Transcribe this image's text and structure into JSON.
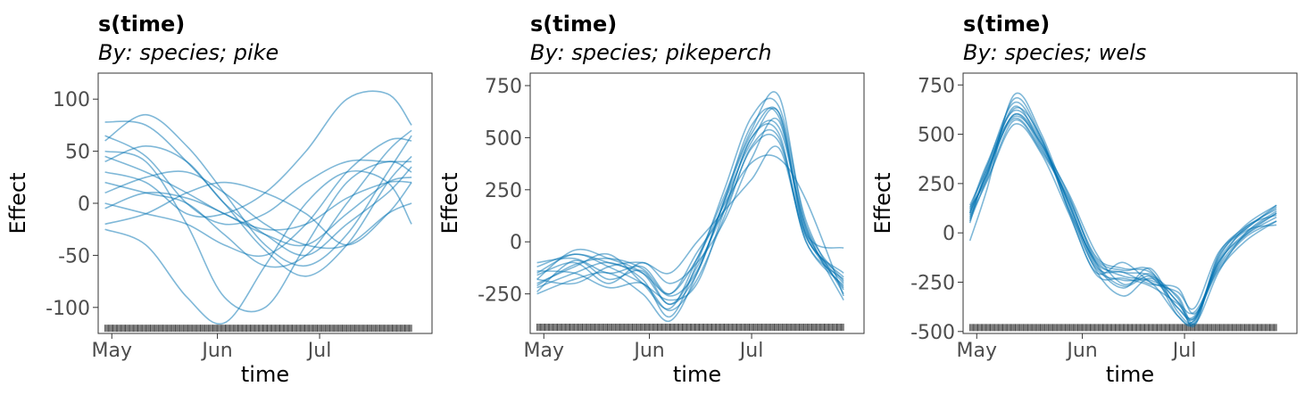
{
  "colors": {
    "curve": "#0072B2",
    "rug": "#4d4d4d",
    "axis_text": "#4d4d4d"
  },
  "chart_data": [
    {
      "type": "line",
      "title": "s(time)",
      "subtitle": "By: species; pike",
      "xlabel": "time",
      "ylabel": "Effect",
      "x_ticks": [
        {
          "label": "May",
          "day": 1
        },
        {
          "label": "Jun",
          "day": 32
        },
        {
          "label": "Jul",
          "day": 62
        }
      ],
      "xlim": [
        -3,
        95
      ],
      "ylim": [
        -125,
        125
      ],
      "y_ticks": [
        {
          "value": 100,
          "label": "100"
        },
        {
          "value": 50,
          "label": "50"
        },
        {
          "value": 0,
          "label": "0"
        },
        {
          "value": -50,
          "label": "-50"
        },
        {
          "value": -100,
          "label": "-100"
        }
      ],
      "rug": {
        "from": -1,
        "to": 89,
        "step": 1,
        "y": -120
      },
      "x": [
        -1,
        11,
        23,
        34,
        46,
        58,
        70,
        82,
        89
      ],
      "series": [
        {
          "values": [
            78,
            75,
            40,
            0,
            -45,
            -70,
            -40,
            20,
            45
          ]
        },
        {
          "values": [
            60,
            85,
            55,
            10,
            -40,
            -60,
            -30,
            30,
            65
          ]
        },
        {
          "values": [
            40,
            55,
            40,
            0,
            -30,
            -50,
            -20,
            10,
            35
          ]
        },
        {
          "values": [
            20,
            10,
            0,
            -30,
            -60,
            -50,
            0,
            50,
            70
          ]
        },
        {
          "values": [
            0,
            -10,
            -20,
            -40,
            -50,
            -20,
            30,
            60,
            60
          ]
        },
        {
          "values": [
            -5,
            10,
            5,
            -10,
            -30,
            -40,
            -10,
            20,
            25
          ]
        },
        {
          "values": [
            -20,
            -10,
            10,
            20,
            10,
            -10,
            -40,
            -10,
            20
          ]
        },
        {
          "values": [
            50,
            40,
            -20,
            -90,
            -100,
            -40,
            20,
            40,
            30
          ]
        },
        {
          "values": [
            -25,
            -40,
            -90,
            -115,
            -60,
            0,
            30,
            20,
            -20
          ]
        },
        {
          "values": [
            65,
            45,
            0,
            -20,
            -10,
            20,
            40,
            40,
            40
          ]
        },
        {
          "values": [
            30,
            20,
            -10,
            -10,
            10,
            50,
            100,
            105,
            75
          ]
        },
        {
          "values": [
            10,
            25,
            30,
            10,
            -20,
            -40,
            -40,
            -10,
            0
          ]
        },
        {
          "values": [
            45,
            30,
            10,
            -10,
            -25,
            -20,
            5,
            20,
            20
          ]
        }
      ]
    },
    {
      "type": "line",
      "title": "s(time)",
      "subtitle": "By: species; pikeperch",
      "xlabel": "time",
      "ylabel": "Effect",
      "x_ticks": [
        {
          "label": "May",
          "day": 1
        },
        {
          "label": "Jun",
          "day": 32
        },
        {
          "label": "Jul",
          "day": 62
        }
      ],
      "xlim": [
        -3,
        95
      ],
      "ylim": [
        -440,
        810
      ],
      "y_ticks": [
        {
          "value": 750,
          "label": "750"
        },
        {
          "value": 500,
          "label": "500"
        },
        {
          "value": 250,
          "label": "250"
        },
        {
          "value": 0,
          "label": "0"
        },
        {
          "value": -250,
          "label": "-250"
        }
      ],
      "rug": {
        "from": -1,
        "to": 89,
        "step": 1,
        "y": -410
      },
      "x": [
        -1,
        10,
        20,
        30,
        38,
        46,
        54,
        62,
        70,
        78,
        89
      ],
      "series": [
        {
          "values": [
            -150,
            -60,
            -120,
            -200,
            -280,
            -200,
            150,
            500,
            520,
            0,
            -180
          ]
        },
        {
          "values": [
            -180,
            -40,
            -80,
            -150,
            -300,
            -150,
            200,
            560,
            600,
            50,
            -200
          ]
        },
        {
          "values": [
            -220,
            -150,
            -100,
            -180,
            -360,
            -100,
            250,
            600,
            650,
            100,
            -250
          ]
        },
        {
          "values": [
            -100,
            -80,
            -150,
            -120,
            -250,
            -50,
            150,
            450,
            480,
            30,
            -220
          ]
        },
        {
          "values": [
            -200,
            -120,
            -60,
            -200,
            -320,
            -80,
            220,
            540,
            700,
            80,
            -190
          ]
        },
        {
          "values": [
            -160,
            -100,
            -200,
            -100,
            -200,
            -100,
            100,
            400,
            580,
            40,
            -30
          ]
        },
        {
          "values": [
            -250,
            -180,
            -150,
            -250,
            -380,
            -150,
            200,
            520,
            620,
            60,
            -230
          ]
        },
        {
          "values": [
            -120,
            -60,
            -100,
            -150,
            -250,
            -80,
            180,
            380,
            400,
            200,
            -260
          ]
        },
        {
          "values": [
            -180,
            -200,
            -120,
            -100,
            -150,
            0,
            150,
            300,
            450,
            20,
            -170
          ]
        },
        {
          "values": [
            -240,
            -90,
            -180,
            -140,
            -300,
            -120,
            160,
            500,
            550,
            70,
            -280
          ]
        },
        {
          "values": [
            -140,
            -150,
            -220,
            -200,
            -330,
            -180,
            120,
            460,
            500,
            0,
            -210
          ]
        },
        {
          "values": [
            -210,
            -110,
            -80,
            -130,
            -260,
            -140,
            190,
            480,
            620,
            30,
            -150
          ]
        }
      ]
    },
    {
      "type": "line",
      "title": "s(time)",
      "subtitle": "By: species; wels",
      "xlabel": "time",
      "ylabel": "Effect",
      "x_ticks": [
        {
          "label": "May",
          "day": 1
        },
        {
          "label": "Jun",
          "day": 32
        },
        {
          "label": "Jul",
          "day": 62
        }
      ],
      "xlim": [
        -3,
        95
      ],
      "ylim": [
        -510,
        810
      ],
      "y_ticks": [
        {
          "value": 750,
          "label": "750"
        },
        {
          "value": 500,
          "label": "500"
        },
        {
          "value": 250,
          "label": "250"
        },
        {
          "value": 0,
          "label": "0"
        },
        {
          "value": -250,
          "label": "-250"
        },
        {
          "value": -500,
          "label": "-500"
        }
      ],
      "rug": {
        "from": -1,
        "to": 89,
        "step": 1,
        "y": -480
      },
      "x": [
        -1,
        4,
        12,
        20,
        28,
        36,
        44,
        52,
        60,
        65,
        72,
        80,
        89
      ],
      "series": [
        {
          "values": [
            100,
            300,
            600,
            450,
            150,
            -150,
            -200,
            -220,
            -380,
            -430,
            -150,
            0,
            100
          ]
        },
        {
          "values": [
            60,
            280,
            680,
            480,
            120,
            -180,
            -240,
            -250,
            -420,
            -450,
            -120,
            20,
            130
          ]
        },
        {
          "values": [
            140,
            320,
            580,
            420,
            180,
            -120,
            -180,
            -200,
            -350,
            -400,
            -180,
            -20,
            60
          ]
        },
        {
          "values": [
            80,
            260,
            550,
            400,
            100,
            -200,
            -150,
            -250,
            -300,
            -380,
            -100,
            20,
            140
          ]
        },
        {
          "values": [
            -40,
            220,
            700,
            500,
            150,
            -160,
            -280,
            -180,
            -400,
            -440,
            -150,
            -10,
            80
          ]
        },
        {
          "values": [
            120,
            350,
            620,
            460,
            120,
            -140,
            -220,
            -240,
            -320,
            -460,
            -200,
            0,
            110
          ]
        },
        {
          "values": [
            90,
            300,
            640,
            440,
            200,
            -100,
            -260,
            -210,
            -380,
            -420,
            -160,
            30,
            90
          ]
        },
        {
          "values": [
            110,
            290,
            600,
            430,
            160,
            -170,
            -200,
            -260,
            -280,
            -410,
            -190,
            -40,
            60
          ]
        },
        {
          "values": [
            50,
            330,
            660,
            470,
            140,
            -190,
            -320,
            -230,
            -350,
            -460,
            -130,
            40,
            140
          ]
        },
        {
          "values": [
            130,
            270,
            570,
            410,
            170,
            -130,
            -190,
            -190,
            -420,
            -440,
            -170,
            -10,
            100
          ]
        },
        {
          "values": [
            70,
            310,
            630,
            480,
            110,
            -210,
            -230,
            -270,
            -360,
            -430,
            -140,
            10,
            40
          ]
        },
        {
          "values": [
            100,
            340,
            590,
            450,
            190,
            -150,
            -270,
            -220,
            -330,
            -470,
            -110,
            30,
            120
          ]
        }
      ]
    }
  ]
}
